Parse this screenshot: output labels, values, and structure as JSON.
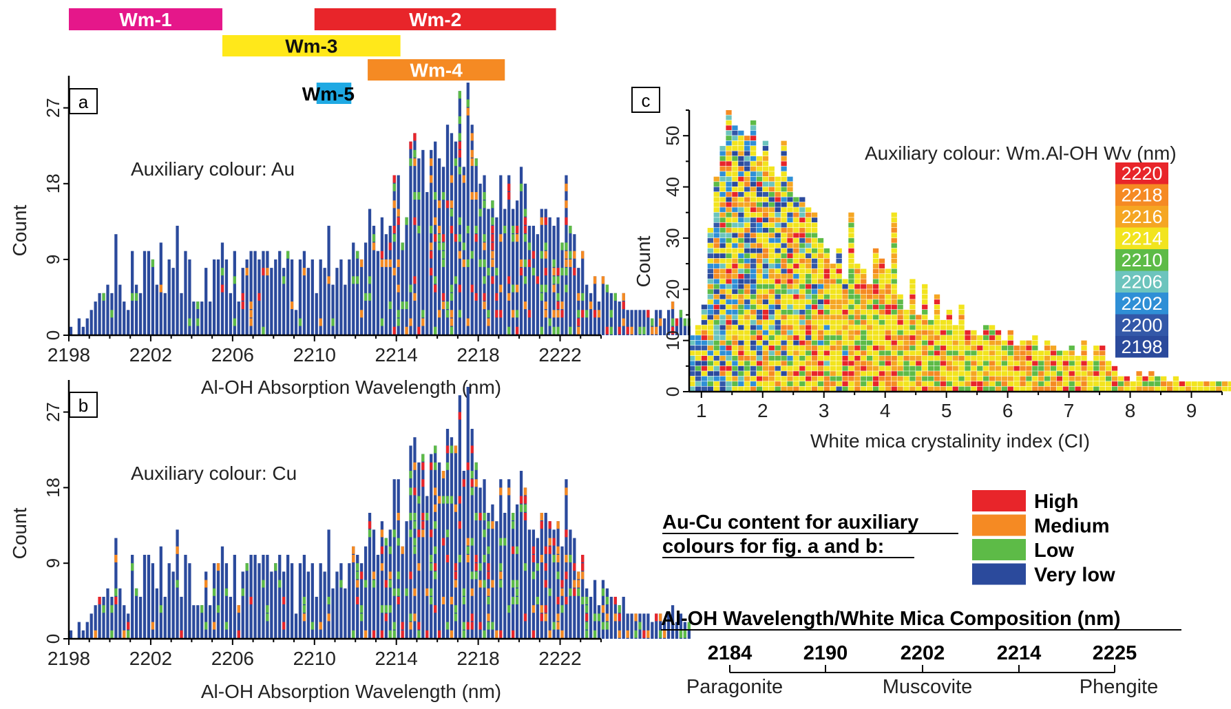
{
  "colors": {
    "bar_main": "#2b4a9c",
    "high": "#e8252a",
    "medium": "#f58a23",
    "low": "#5dbb47",
    "very_low": "#2b4a9c",
    "wm1": "#e5178a",
    "wm2": "#e8252a",
    "wm3": "#ffe81a",
    "wm4": "#f58a23",
    "wm5": "#1fa9e3",
    "ci_scale": [
      "#e8252a",
      "#f58a23",
      "#f5a623",
      "#f2e41e",
      "#5dbb47",
      "#6cc4bd",
      "#2f8fd6",
      "#3358a8",
      "#2b4a9c"
    ]
  },
  "wm_bars": [
    {
      "label": "Wm-1",
      "start": 2198.0,
      "end": 2205.5,
      "color_key": "wm1"
    },
    {
      "label": "Wm-2",
      "start": 2210.0,
      "end": 2221.8,
      "color_key": "wm2"
    },
    {
      "label": "Wm-3",
      "start": 2205.5,
      "end": 2214.2,
      "color_key": "wm3"
    },
    {
      "label": "Wm-4",
      "start": 2212.6,
      "end": 2219.3,
      "color_key": "wm4"
    },
    {
      "label": "Wm-5",
      "start": 2210.1,
      "end": 2211.8,
      "color_key": "wm5"
    }
  ],
  "chart_data": [
    {
      "id": "a",
      "panel_label": "a",
      "type": "bar",
      "title": "Auxiliary colour: Au",
      "xlabel": "Al-OH Absorption Wavelength (nm)",
      "ylabel": "Count",
      "xlim": [
        2198,
        2224
      ],
      "ylim": [
        0,
        30
      ],
      "xticks": [
        2198,
        2202,
        2206,
        2210,
        2214,
        2218,
        2222
      ],
      "yticks": [
        0,
        9,
        18,
        27
      ],
      "bin_width_nm": 0.2,
      "x_start": 2198.1,
      "counts": [
        1,
        0,
        2,
        1,
        2,
        3,
        4,
        5,
        5,
        6,
        5,
        12,
        6,
        4,
        3,
        10,
        6,
        5,
        10,
        10,
        9,
        6,
        11,
        5,
        9,
        8,
        13,
        5,
        10,
        9,
        4,
        4,
        4,
        8,
        4,
        9,
        9,
        11,
        9,
        5,
        10,
        4,
        8,
        9,
        10,
        10,
        9,
        10,
        10,
        8,
        9,
        10,
        8,
        10,
        9,
        3,
        9,
        10,
        8,
        9,
        5,
        9,
        8,
        13,
        6,
        8,
        9,
        6,
        9,
        11,
        10,
        9,
        11,
        15,
        13,
        10,
        14,
        12,
        13,
        19,
        19,
        11,
        14,
        23,
        24,
        21,
        22,
        17,
        22,
        23,
        21,
        20,
        25,
        24,
        23,
        29,
        20,
        30,
        25,
        21,
        18,
        19,
        15,
        16,
        14,
        19,
        15,
        19,
        15,
        16,
        20,
        18,
        13,
        13,
        12,
        15,
        15,
        14,
        13,
        14,
        11,
        19,
        13,
        12,
        8,
        10,
        6,
        5,
        7,
        4,
        7,
        6,
        5,
        5,
        4,
        5,
        3,
        3,
        3,
        3,
        3,
        3,
        2,
        3,
        3,
        2,
        3,
        4,
        2,
        3,
        2,
        2
      ]
    },
    {
      "id": "b",
      "panel_label": "b",
      "type": "bar",
      "title": "Auxiliary colour: Cu",
      "xlabel": "Al-OH Absorption Wavelength (nm)",
      "ylabel": "Count",
      "xlim": [
        2198,
        2224
      ],
      "ylim": [
        0,
        30
      ],
      "xticks": [
        2198,
        2202,
        2206,
        2210,
        2214,
        2218,
        2222
      ],
      "yticks": [
        0,
        9,
        18,
        27
      ],
      "bin_width_nm": 0.2,
      "x_start": 2198.1,
      "counts": [
        1,
        0,
        2,
        1,
        2,
        3,
        4,
        5,
        5,
        6,
        5,
        12,
        6,
        4,
        3,
        10,
        6,
        5,
        10,
        10,
        9,
        6,
        11,
        5,
        9,
        8,
        13,
        5,
        10,
        9,
        4,
        4,
        4,
        8,
        4,
        9,
        9,
        11,
        9,
        5,
        10,
        4,
        8,
        9,
        10,
        10,
        9,
        10,
        10,
        8,
        9,
        10,
        8,
        10,
        9,
        3,
        9,
        10,
        8,
        9,
        5,
        9,
        8,
        13,
        6,
        8,
        9,
        6,
        9,
        11,
        10,
        9,
        11,
        15,
        13,
        10,
        14,
        12,
        13,
        19,
        19,
        11,
        14,
        23,
        24,
        21,
        22,
        17,
        22,
        23,
        21,
        20,
        25,
        24,
        23,
        29,
        20,
        30,
        25,
        21,
        18,
        19,
        15,
        16,
        14,
        19,
        15,
        19,
        15,
        16,
        20,
        18,
        13,
        13,
        12,
        15,
        15,
        14,
        13,
        14,
        11,
        19,
        13,
        12,
        8,
        10,
        6,
        5,
        7,
        4,
        7,
        6,
        5,
        5,
        4,
        5,
        3,
        3,
        3,
        3,
        3,
        3,
        2,
        3,
        3,
        2,
        3,
        4,
        2,
        3,
        2,
        2
      ]
    },
    {
      "id": "c",
      "panel_label": "c",
      "type": "bar",
      "title": "Auxiliary colour: Wm.Al-OH Wv (nm)",
      "xlabel": "White mica crystalinity index (CI)",
      "ylabel": "Count",
      "xlim": [
        0.8,
        9.5
      ],
      "ylim": [
        0,
        55
      ],
      "xticks": [
        1,
        2,
        3,
        4,
        5,
        6,
        7,
        8,
        9
      ],
      "yticks": [
        0,
        10,
        20,
        30,
        40,
        50
      ],
      "bin_width": 0.1,
      "x_start": 0.85,
      "counts": [
        11,
        13,
        17,
        32,
        42,
        48,
        55,
        52,
        51,
        50,
        53,
        46,
        49,
        44,
        42,
        49,
        42,
        38,
        38,
        36,
        35,
        30,
        28,
        25,
        28,
        22,
        35,
        25,
        24,
        21,
        28,
        26,
        24,
        35,
        19,
        16,
        22,
        15,
        21,
        14,
        19,
        14,
        16,
        13,
        17,
        12,
        12,
        11,
        13,
        13,
        12,
        10,
        12,
        9,
        10,
        10,
        11,
        8,
        10,
        9,
        8,
        8,
        9,
        7,
        10,
        6,
        9,
        9,
        6,
        5,
        3,
        3,
        2,
        4,
        3,
        4,
        3,
        3,
        2,
        3,
        2,
        2,
        2,
        2,
        2,
        2,
        2,
        2,
        2
      ],
      "legend_values": [
        "2220",
        "2218",
        "2216",
        "2214",
        "2210",
        "2206",
        "2202",
        "2200",
        "2198"
      ]
    }
  ],
  "legend_aucu": {
    "title_line1": "Au-Cu content for auxiliary",
    "title_line2": "colours for fig. a and b:",
    "items": [
      {
        "label": "High",
        "color_key": "high"
      },
      {
        "label": "Medium",
        "color_key": "medium"
      },
      {
        "label": "Low",
        "color_key": "low"
      },
      {
        "label": "Very low",
        "color_key": "very_low"
      }
    ]
  },
  "composition": {
    "title": "Al-OH Wavelength/White Mica Composition (nm)",
    "values": [
      "2184",
      "2190",
      "2202",
      "2214",
      "2225"
    ],
    "minerals": [
      "Paragonite",
      "Muscovite",
      "Phengite"
    ]
  }
}
